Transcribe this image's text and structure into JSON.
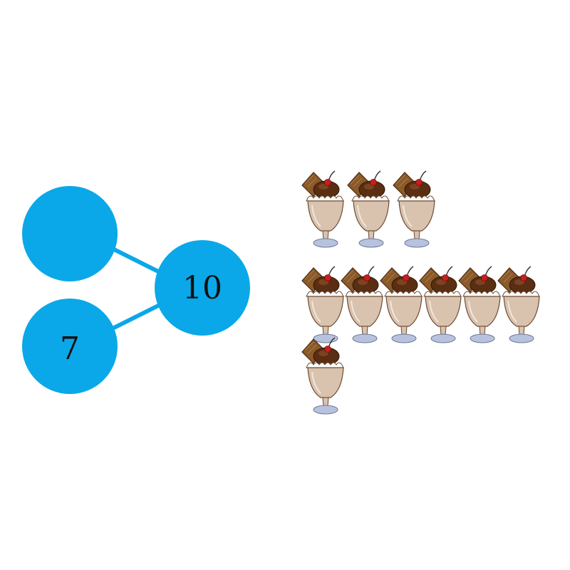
{
  "number_bond": {
    "part_top": "",
    "part_bottom": "7",
    "whole": "10"
  },
  "colors": {
    "circle": "#0AA8E8",
    "connector": "#0AA8E8",
    "sundae_glass": "#D9C2AE",
    "sundae_base": "#B7C3DE",
    "chocolate": "#5A2E12",
    "wafer": "#8B5A2B",
    "cream": "#FFFFFF",
    "cherry": "#C81E1E"
  },
  "sundaes": {
    "icon": "ice-cream-sundae-icon",
    "rows": [
      3,
      6,
      1
    ],
    "total": 10
  }
}
